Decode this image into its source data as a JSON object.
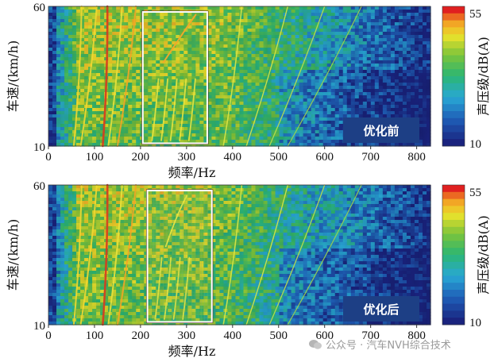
{
  "chart_data": [
    {
      "type": "heatmap",
      "title": "",
      "panel_label": "优化前",
      "xlabel": "频率/Hz",
      "ylabel": "车速/(km/h)",
      "xlim": [
        0,
        830
      ],
      "ylim": [
        10,
        60
      ],
      "xticks": [
        "0",
        "100",
        "200",
        "300",
        "400",
        "500",
        "600",
        "700",
        "800"
      ],
      "yticks": [
        "60",
        "10"
      ],
      "colorbar": {
        "label": "声压级/dB(A)",
        "min": 10,
        "max": 55,
        "ticks": [
          "55",
          "10"
        ]
      },
      "highlight_box": {
        "x_range": [
          205,
          345
        ],
        "y_range": [
          11,
          58
        ]
      },
      "legend": "none",
      "grid": false
    },
    {
      "type": "heatmap",
      "title": "",
      "panel_label": "优化后",
      "xlabel": "频率/Hz",
      "ylabel": "车速/(km/h)",
      "xlim": [
        0,
        830
      ],
      "ylim": [
        10,
        60
      ],
      "xticks": [
        "0",
        "100",
        "200",
        "300",
        "400",
        "500",
        "600",
        "700",
        "800"
      ],
      "yticks": [
        "60",
        "10"
      ],
      "colorbar": {
        "label": "声压级/dB(A)",
        "min": 10,
        "max": 55,
        "ticks": [
          "55",
          "10"
        ]
      },
      "highlight_box": {
        "x_range": [
          215,
          355
        ],
        "y_range": [
          11,
          58
        ]
      },
      "legend": "none",
      "grid": false
    }
  ],
  "colors": {
    "low": "#1a2f8a",
    "mid": "#27b35a",
    "high": "#e23a22",
    "badge": "#1d3f85",
    "box": "#ffffff"
  },
  "watermark": {
    "icon": "wechat-icon",
    "text": "公众号 · 汽车NVH综合技术"
  }
}
